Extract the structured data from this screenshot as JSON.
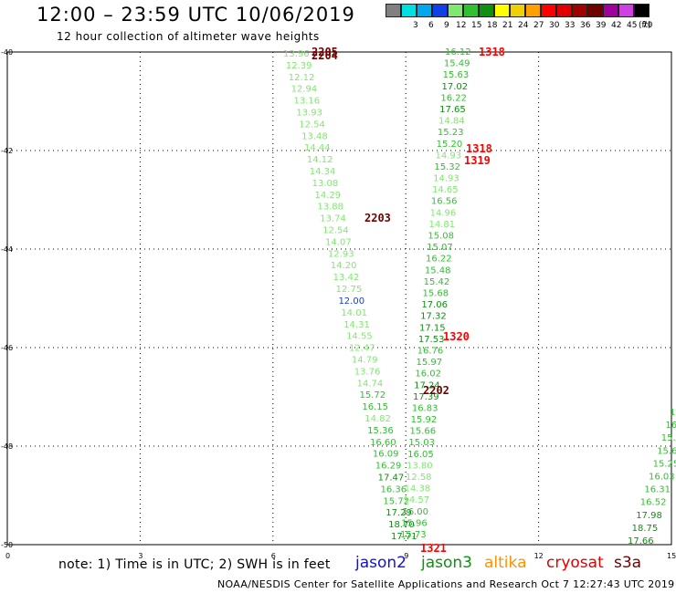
{
  "header": {
    "title": "12:00 – 23:59 UTC 10/06/2019",
    "subtitle": "12 hour collection of altimeter wave heights"
  },
  "color_scale": {
    "unit_label": "(ft)",
    "steps": [
      {
        "label": "",
        "color": "#808080"
      },
      {
        "label": "3",
        "color": "#00e0e0"
      },
      {
        "label": "6",
        "color": "#00a8f0"
      },
      {
        "label": "9",
        "color": "#1040e8"
      },
      {
        "label": "12",
        "color": "#80e870"
      },
      {
        "label": "15",
        "color": "#30c030"
      },
      {
        "label": "18",
        "color": "#109010"
      },
      {
        "label": "21",
        "color": "#ffff00"
      },
      {
        "label": "24",
        "color": "#f0d000"
      },
      {
        "label": "27",
        "color": "#ffa000"
      },
      {
        "label": "30",
        "color": "#ff0000"
      },
      {
        "label": "33",
        "color": "#e00000"
      },
      {
        "label": "36",
        "color": "#a00000"
      },
      {
        "label": "39",
        "color": "#700000"
      },
      {
        "label": "42",
        "color": "#a000a0"
      },
      {
        "label": "45",
        "color": "#d040e0"
      },
      {
        "label": "70",
        "color": "#000000"
      }
    ]
  },
  "axes": {
    "lon_ticks": [
      "0",
      "3",
      "6",
      "9",
      "12",
      "15"
    ],
    "lat_ticks": [
      "-40",
      "-42",
      "-44",
      "-46",
      "-48",
      "-50"
    ]
  },
  "tracks": [
    {
      "colors": [
        "#80e870"
      ],
      "points": [
        [
          "13.96",
          "#80e870"
        ],
        [
          "12.39",
          "#80e870"
        ],
        [
          "12.12",
          "#80e870"
        ],
        [
          "12.94",
          "#80e870"
        ],
        [
          "13.16",
          "#80e870"
        ],
        [
          "13.93",
          "#80e870"
        ],
        [
          "12.54",
          "#80e870"
        ],
        [
          "13.48",
          "#80e870"
        ],
        [
          "14.44",
          "#80e870"
        ],
        [
          "14.12",
          "#80e870"
        ],
        [
          "14.34",
          "#80e870"
        ],
        [
          "13.08",
          "#80e870"
        ],
        [
          "14.29",
          "#80e870"
        ],
        [
          "13.88",
          "#80e870"
        ],
        [
          "13.74",
          "#80e870"
        ],
        [
          "12.54",
          "#80e870"
        ],
        [
          "14.07",
          "#80e870"
        ],
        [
          "12.93",
          "#80e870"
        ],
        [
          "14.20",
          "#80e870"
        ],
        [
          "13.42",
          "#80e870"
        ],
        [
          "12.75",
          "#80e870"
        ],
        [
          "12.00",
          "#1040e8"
        ],
        [
          "14.01",
          "#80e870"
        ],
        [
          "14.31",
          "#80e870"
        ],
        [
          "14.55",
          "#80e870"
        ],
        [
          "12.47",
          "#80e870"
        ],
        [
          "14.79",
          "#80e870"
        ],
        [
          "13.76",
          "#80e870"
        ],
        [
          "14.74",
          "#80e870"
        ],
        [
          "15.72",
          "#30c030"
        ],
        [
          "16.15",
          "#30c030"
        ],
        [
          "14.82",
          "#80e870"
        ],
        [
          "15.36",
          "#30c030"
        ],
        [
          "16.60",
          "#30c030"
        ],
        [
          "16.09",
          "#30c030"
        ],
        [
          "16.29",
          "#30c030"
        ],
        [
          "17.47",
          "#109010"
        ],
        [
          "16.36",
          "#30c030"
        ],
        [
          "15.72",
          "#30c030"
        ],
        [
          "17.29",
          "#109010"
        ],
        [
          "18.70",
          "#109010"
        ],
        [
          "17.71",
          "#109010"
        ]
      ]
    },
    {
      "points": [
        [
          "16.12",
          "#30c030"
        ],
        [
          "15.49",
          "#30c030"
        ],
        [
          "15.63",
          "#30c030"
        ],
        [
          "17.02",
          "#109010"
        ],
        [
          "16.22",
          "#30c030"
        ],
        [
          "17.65",
          "#109010"
        ],
        [
          "14.84",
          "#80e870"
        ],
        [
          "15.23",
          "#30c030"
        ],
        [
          "15.20",
          "#30c030"
        ],
        [
          "14.93",
          "#80e870"
        ],
        [
          "15.32",
          "#30c030"
        ],
        [
          "14.93",
          "#80e870"
        ],
        [
          "14.65",
          "#80e870"
        ],
        [
          "16.56",
          "#30c030"
        ],
        [
          "14.96",
          "#80e870"
        ],
        [
          "14.81",
          "#80e870"
        ],
        [
          "15.08",
          "#30c030"
        ],
        [
          "15.07",
          "#30c030"
        ],
        [
          "16.22",
          "#30c030"
        ],
        [
          "15.48",
          "#30c030"
        ],
        [
          "15.42",
          "#30c030"
        ],
        [
          "15.68",
          "#30c030"
        ],
        [
          "17.06",
          "#109010"
        ],
        [
          "17.32",
          "#109010"
        ],
        [
          "17.15",
          "#109010"
        ],
        [
          "17.53",
          "#109010"
        ],
        [
          "16.76",
          "#30c030"
        ],
        [
          "15.97",
          "#30c030"
        ],
        [
          "16.02",
          "#30c030"
        ],
        [
          "17.24",
          "#109010"
        ],
        [
          "17.39",
          "#109010"
        ],
        [
          "16.83",
          "#30c030"
        ],
        [
          "15.92",
          "#30c030"
        ],
        [
          "15.66",
          "#30c030"
        ],
        [
          "15.03",
          "#30c030"
        ],
        [
          "16.05",
          "#30c030"
        ],
        [
          "13.80",
          "#80e870"
        ],
        [
          "12.58",
          "#80e870"
        ],
        [
          "14.38",
          "#80e870"
        ],
        [
          "14.57",
          "#80e870"
        ],
        [
          "16.00",
          "#30c030"
        ],
        [
          "15.96",
          "#30c030"
        ],
        [
          "15.73",
          "#30c030"
        ]
      ]
    },
    {
      "points": [
        [
          "1",
          "#30c030"
        ],
        [
          "16",
          "#30c030"
        ],
        [
          "15.",
          "#30c030"
        ],
        [
          "15.6",
          "#30c030"
        ],
        [
          "15.25",
          "#30c030"
        ],
        [
          "16.03",
          "#30c030"
        ],
        [
          "16.31",
          "#30c030"
        ],
        [
          "16.52",
          "#30c030"
        ],
        [
          "17.98",
          "#109010"
        ],
        [
          "18.75",
          "#109010"
        ],
        [
          "17.66",
          "#109010"
        ]
      ]
    }
  ],
  "pass_labels": [
    {
      "text": "2205",
      "color": "#700000"
    },
    {
      "text": "2204",
      "color": "#700000"
    },
    {
      "text": "1318",
      "color": "#ff0000"
    },
    {
      "text": "1318",
      "color": "#ff0000"
    },
    {
      "text": "1319",
      "color": "#ff0000"
    },
    {
      "text": "2203",
      "color": "#700000"
    },
    {
      "text": "1320",
      "color": "#ff0000"
    },
    {
      "text": "2202",
      "color": "#700000"
    },
    {
      "text": "1321",
      "color": "#ff0000"
    }
  ],
  "note": "note: 1) Time is in UTC; 2) SWH is in feet",
  "legend": [
    {
      "name": "jason2",
      "color": "#1010e0"
    },
    {
      "name": "jason3",
      "color": "#109010"
    },
    {
      "name": "altika",
      "color": "#ff9000"
    },
    {
      "name": "cryosat",
      "color": "#e00000"
    },
    {
      "name": "s3a",
      "color": "#700000"
    }
  ],
  "footer": "NOAA/NESDIS Center for Satellite Applications and Research   Oct  7 12:27:43 UTC 2019"
}
